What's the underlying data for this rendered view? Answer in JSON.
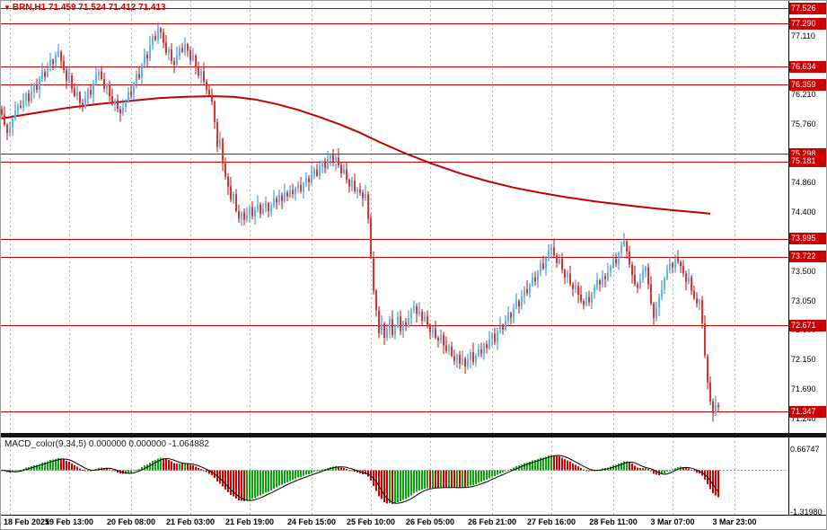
{
  "title": {
    "marker": "▼",
    "full": "BRN,H1 71.459 71.524 71.412 71.413"
  },
  "colors": {
    "bull": "#5bb7e8",
    "bull_wick": "#2a85c8",
    "bear": "#e03030",
    "bear_wick": "#b01010",
    "ma": "#c00000",
    "hline": "#c00000",
    "badge_bg": "#cc0000",
    "badge_text": "#ffffff",
    "hist_up": "#0ca50c",
    "hist_down": "#d40000",
    "signal": "#000000",
    "grid": "#b3b3b3",
    "axis_text": "#000000",
    "title": "#cc0000"
  },
  "chart_data": [
    {
      "type": "candlestick",
      "title": "BRN,H1 71.459 71.524 71.412 71.413",
      "symbol": "BRN",
      "timeframe": "H1",
      "ohlc_current": {
        "open": "71.459",
        "high": "71.524",
        "low": "71.412",
        "close": "71.413"
      },
      "ylim": [
        71.02,
        77.64
      ],
      "y_ticks": [
        "77.110",
        "76.210",
        "75.760",
        "75.310",
        "74.860",
        "74.400",
        "73.950",
        "73.500",
        "73.050",
        "72.600",
        "72.150",
        "71.690",
        "71.240"
      ],
      "x_ticks": [
        {
          "i": 3,
          "label": "18 Feb 2025"
        },
        {
          "i": 25,
          "label": "19 Feb 13:00"
        },
        {
          "i": 48,
          "label": "20 Feb 08:00"
        },
        {
          "i": 70,
          "label": "21 Feb 03:00"
        },
        {
          "i": 92,
          "label": "21 Feb 19:00"
        },
        {
          "i": 115,
          "label": "24 Feb 15:00"
        },
        {
          "i": 137,
          "label": "25 Feb 10:00"
        },
        {
          "i": 159,
          "label": "26 Feb 05:00"
        },
        {
          "i": 182,
          "label": "26 Feb 21:00"
        },
        {
          "i": 204,
          "label": "27 Feb 16:00"
        },
        {
          "i": 227,
          "label": "28 Feb 11:00"
        },
        {
          "i": 249,
          "label": "3 Mar 07:00"
        },
        {
          "i": 272,
          "label": "3 Mar 23:00"
        }
      ],
      "hlines": [
        {
          "value": 77.526,
          "label": "77.526"
        },
        {
          "value": 77.29,
          "label": "77.290"
        },
        {
          "value": 76.634,
          "label": "76.634"
        },
        {
          "value": 76.359,
          "label": "76.359"
        },
        {
          "value": 75.298,
          "label": "75.298"
        },
        {
          "value": 75.181,
          "label": "75.181"
        },
        {
          "value": 73.995,
          "label": "73.995"
        },
        {
          "value": 73.722,
          "label": "73.722"
        },
        {
          "value": 72.671,
          "label": "72.671"
        },
        {
          "value": 71.347,
          "label": "71.347"
        }
      ],
      "ma_line": {
        "name": "moving-average",
        "points": [
          [
            0,
            75.84
          ],
          [
            12,
            75.92
          ],
          [
            24,
            76.0
          ],
          [
            36,
            76.06
          ],
          [
            48,
            76.11
          ],
          [
            58,
            76.15
          ],
          [
            68,
            76.17
          ],
          [
            78,
            76.18
          ],
          [
            86,
            76.17
          ],
          [
            94,
            76.13
          ],
          [
            102,
            76.06
          ],
          [
            110,
            75.97
          ],
          [
            118,
            75.86
          ],
          [
            126,
            75.74
          ],
          [
            133,
            75.62
          ],
          [
            140,
            75.48
          ],
          [
            150,
            75.3
          ],
          [
            160,
            75.14
          ],
          [
            170,
            75.0
          ],
          [
            180,
            74.88
          ],
          [
            190,
            74.78
          ],
          [
            200,
            74.7
          ],
          [
            210,
            74.63
          ],
          [
            220,
            74.57
          ],
          [
            230,
            74.52
          ],
          [
            240,
            74.47
          ],
          [
            250,
            74.43
          ],
          [
            258,
            74.4
          ],
          [
            263,
            74.38
          ]
        ]
      },
      "first_open": 75.98,
      "wick_up_pattern": [
        0.06,
        0.12,
        0.03,
        0.09,
        0.05,
        0.14,
        0.04,
        0.08,
        0.1,
        0.02
      ],
      "wick_down_pattern": [
        0.08,
        0.03,
        0.11,
        0.05,
        0.13,
        0.04,
        0.07,
        0.02,
        0.06,
        0.1
      ],
      "closes": [
        75.9,
        75.74,
        75.62,
        75.7,
        75.84,
        75.96,
        76.04,
        76.0,
        76.12,
        76.22,
        76.1,
        76.26,
        76.36,
        76.28,
        76.44,
        76.56,
        76.48,
        76.62,
        76.74,
        76.68,
        76.8,
        76.86,
        76.72,
        76.58,
        76.42,
        76.5,
        76.3,
        76.18,
        76.24,
        76.08,
        76.02,
        76.14,
        76.28,
        76.2,
        76.38,
        76.5,
        76.56,
        76.44,
        76.3,
        76.36,
        76.18,
        76.06,
        76.12,
        75.98,
        75.92,
        76.0,
        76.1,
        76.24,
        76.2,
        76.38,
        76.52,
        76.46,
        76.66,
        76.82,
        76.76,
        76.96,
        77.1,
        77.04,
        77.22,
        77.16,
        77.0,
        76.84,
        76.9,
        76.72,
        76.66,
        76.8,
        76.92,
        76.86,
        76.98,
        76.88,
        76.74,
        76.8,
        76.62,
        76.5,
        76.56,
        76.4,
        76.28,
        76.2,
        76.1,
        75.78,
        75.4,
        75.52,
        75.15,
        74.95,
        74.8,
        74.6,
        74.68,
        74.42,
        74.3,
        74.4,
        74.28,
        74.36,
        74.48,
        74.34,
        74.44,
        74.52,
        74.38,
        74.46,
        74.54,
        74.42,
        74.5,
        74.62,
        74.56,
        74.66,
        74.58,
        74.7,
        74.64,
        74.74,
        74.68,
        74.78,
        74.82,
        74.72,
        74.84,
        74.92,
        74.86,
        74.98,
        75.06,
        74.96,
        75.1,
        75.18,
        75.08,
        75.22,
        75.28,
        75.16,
        75.24,
        75.12,
        75.0,
        75.06,
        74.9,
        74.8,
        74.88,
        74.72,
        74.76,
        74.7,
        74.62,
        74.68,
        74.3,
        73.7,
        73.2,
        72.9,
        72.55,
        72.7,
        72.48,
        72.6,
        72.76,
        72.52,
        72.64,
        72.8,
        72.58,
        72.72,
        72.66,
        72.78,
        72.9,
        72.96,
        72.84,
        72.88,
        72.74,
        72.8,
        72.68,
        72.56,
        72.62,
        72.48,
        72.44,
        72.52,
        72.36,
        72.28,
        72.34,
        72.2,
        72.12,
        72.22,
        72.08,
        72.16,
        72.04,
        72.14,
        72.26,
        72.1,
        72.2,
        72.3,
        72.24,
        72.38,
        72.32,
        72.46,
        72.54,
        72.42,
        72.58,
        72.66,
        72.6,
        72.74,
        72.86,
        72.78,
        72.94,
        73.04,
        72.96,
        73.12,
        73.22,
        73.16,
        73.28,
        73.4,
        73.34,
        73.5,
        73.62,
        73.54,
        73.7,
        73.82,
        73.86,
        73.74,
        73.62,
        73.68,
        73.52,
        73.4,
        73.46,
        73.3,
        73.22,
        73.28,
        73.14,
        73.04,
        72.98,
        73.1,
        73.02,
        73.16,
        73.24,
        73.36,
        73.3,
        73.42,
        73.38,
        73.48,
        73.56,
        73.68,
        73.62,
        73.78,
        73.9,
        73.96,
        73.8,
        73.6,
        73.44,
        73.3,
        73.24,
        73.38,
        73.5,
        73.56,
        73.3,
        73.0,
        72.78,
        72.94,
        73.1,
        73.22,
        73.38,
        73.52,
        73.62,
        73.56,
        73.7,
        73.64,
        73.58,
        73.46,
        73.34,
        73.4,
        73.2,
        73.08,
        73.0,
        73.06,
        72.7,
        72.2,
        71.8,
        71.5,
        71.32,
        71.45,
        71.41
      ]
    },
    {
      "type": "bar",
      "name": "MACD histogram",
      "label": "MACD_color(9,34,5) 0.000000 0.000000 -1.064882",
      "derived_from_closes": {
        "fast_ema": 9,
        "slow_ema": 34,
        "signal_sma": 5
      },
      "ylim": [
        -1.4,
        1.0
      ],
      "y_ticks": [
        {
          "value": 0.66747,
          "label": "0.66747"
        },
        {
          "value": -1.3198,
          "label": "-1.31980"
        }
      ]
    }
  ]
}
